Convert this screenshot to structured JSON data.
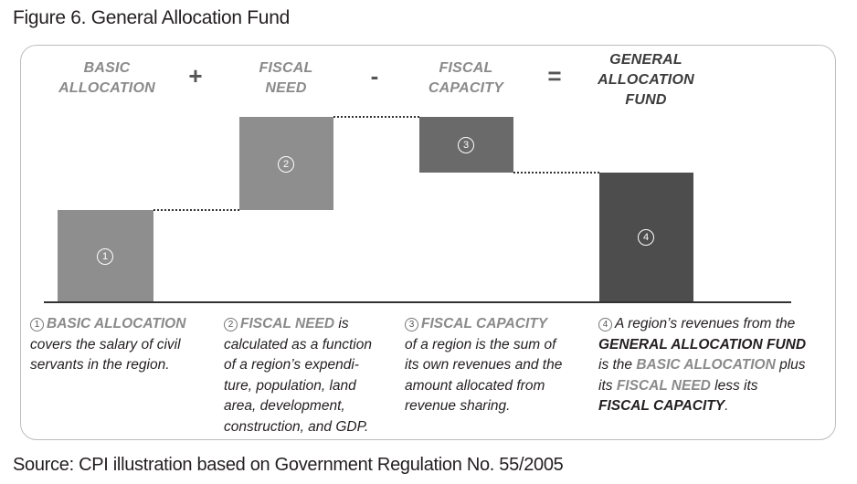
{
  "title": "Figure 6. General Allocation Fund",
  "source": "Source: CPI illustration based on Government Regulation No. 55/2005",
  "headers": [
    {
      "line1": "BASIC",
      "line2": "ALLOCATION"
    },
    {
      "line1": "FISCAL",
      "line2": "NEED"
    },
    {
      "line1": "FISCAL",
      "line2": "CAPACITY"
    },
    {
      "line1": "GENERAL",
      "line2": "ALLOCATION",
      "line3": "FUND"
    }
  ],
  "operators": [
    "+",
    "-",
    "="
  ],
  "steps": [
    {
      "num": "1",
      "color": "#8e8e8e"
    },
    {
      "num": "2",
      "color": "#8e8e8e"
    },
    {
      "num": "3",
      "color": "#6a6a6a"
    },
    {
      "num": "4",
      "color": "#4d4d4d"
    }
  ],
  "descriptions": {
    "d1": {
      "num": "1",
      "term": "BASIC ALLOCATION",
      "l1": "covers the salary of civil",
      "l2": "servants in the region."
    },
    "d2": {
      "num": "2",
      "term": "FISCAL NEED",
      "t1": " is",
      "l1": "calculated as a function",
      "l2": "of a region’s expendi-",
      "l3": "ture, population, land",
      "l4": "area, development,",
      "l5": "construction, and GDP."
    },
    "d3": {
      "num": "3",
      "term": "FISCAL CAPACITY",
      "l1": "of a region is the sum of",
      "l2": "its own revenues and the",
      "l3": "amount allocated from",
      "l4": "revenue sharing."
    },
    "d4": {
      "num": "4",
      "t1": "A region’s revenues from the",
      "b1": "GENERAL ALLOCATION FUND",
      "t2": "is the ",
      "b2": "BASIC ALLOCATION",
      "t3": " plus",
      "t4": "its ",
      "b3": "FISCAL NEED",
      "t5": " less its",
      "b4": "FISCAL CAPACITY",
      "t6": "."
    }
  }
}
